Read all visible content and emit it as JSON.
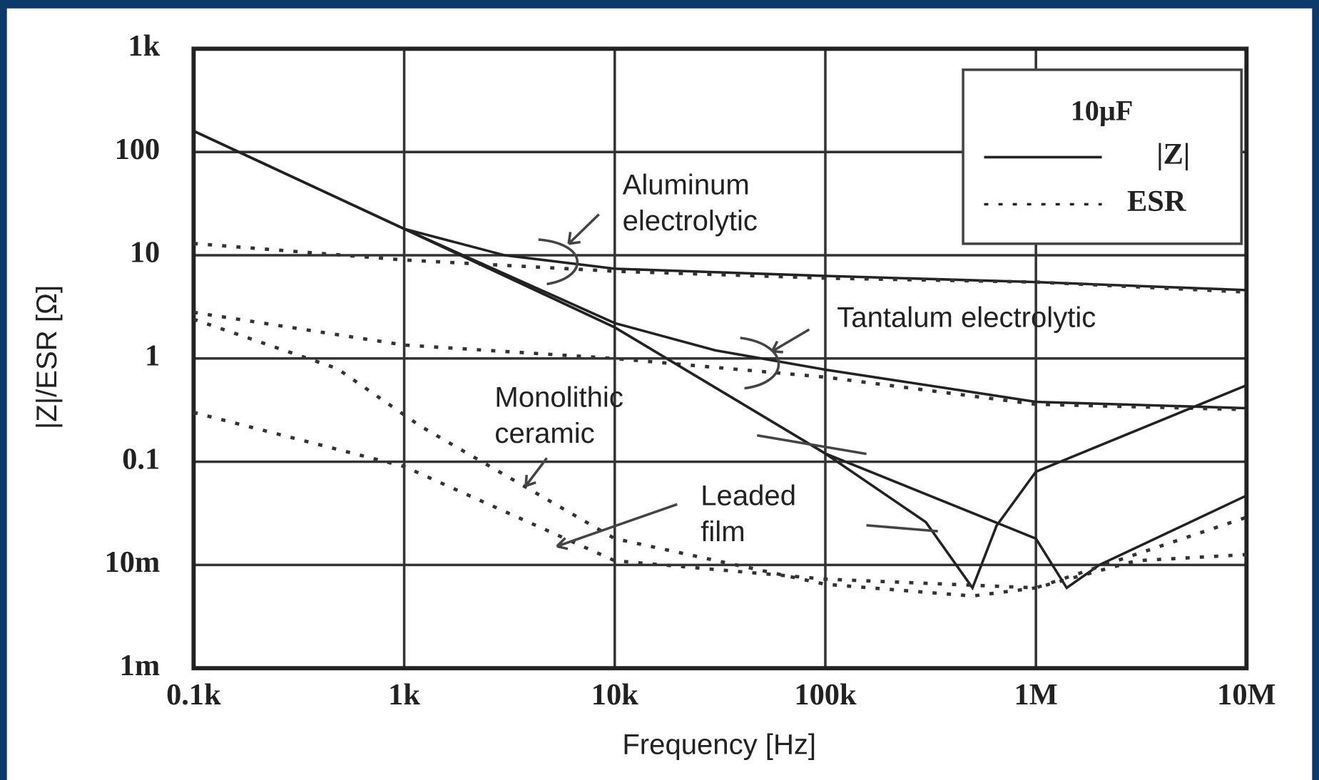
{
  "chart_data": {
    "type": "line",
    "log_x": true,
    "log_y": true,
    "grid": true,
    "x_label": "Frequency [Hz]",
    "y_label": "|Z|/ESR [Ω]",
    "xlim": [
      100,
      10000000
    ],
    "ylim": [
      0.001,
      1000
    ],
    "xticks": [
      {
        "value": 100,
        "label": "0.1k"
      },
      {
        "value": 1000,
        "label": "1k"
      },
      {
        "value": 10000,
        "label": "10k"
      },
      {
        "value": 100000,
        "label": "100k"
      },
      {
        "value": 1000000,
        "label": "1M"
      },
      {
        "value": 10000000,
        "label": "10M"
      }
    ],
    "yticks": [
      {
        "value": 0.001,
        "label": "1m"
      },
      {
        "value": 0.01,
        "label": "10m"
      },
      0.1,
      1,
      10,
      100,
      {
        "value": 1000,
        "label": "1k"
      }
    ],
    "legend": {
      "title": "10µF",
      "entries": [
        {
          "label": "|Z|",
          "style": "solid"
        },
        {
          "label": "ESR",
          "style": "dashed"
        }
      ]
    },
    "series": [
      {
        "style": "solid",
        "color": "#222",
        "x": [
          100,
          1000,
          3000,
          10000,
          100000,
          1000000,
          10000000
        ],
        "y": [
          160,
          18,
          10,
          7.4,
          6.3,
          5.5,
          4.6
        ]
      },
      {
        "style": "dashed",
        "color": "#333",
        "x": [
          100,
          1000,
          10000,
          100000,
          1000000,
          10000000
        ],
        "y": [
          13,
          9,
          7,
          6,
          5.5,
          4.4
        ]
      },
      {
        "style": "solid",
        "color": "#222",
        "x": [
          100,
          1000,
          10000,
          30000,
          100000,
          1000000,
          10000000
        ],
        "y": [
          160,
          18,
          2.2,
          1.2,
          0.78,
          0.38,
          0.33
        ]
      },
      {
        "style": "dashed",
        "color": "#333",
        "x": [
          100,
          1000,
          10000,
          100000,
          1000000,
          10000000
        ],
        "y": [
          2.8,
          1.35,
          1.0,
          0.66,
          0.36,
          0.32
        ]
      },
      {
        "style": "solid",
        "color": "#222",
        "x": [
          100,
          1000,
          10000,
          100000,
          300000,
          500000,
          650000,
          1000000,
          10000000
        ],
        "y": [
          160,
          18,
          2,
          0.12,
          0.026,
          0.006,
          0.024,
          0.08,
          0.55
        ]
      },
      {
        "style": "dashed",
        "color": "#333",
        "x": [
          100,
          480,
          1200,
          10000,
          100000,
          500000,
          1000000,
          3000000,
          10000000
        ],
        "y": [
          2.4,
          0.8,
          0.22,
          0.018,
          0.0065,
          0.005,
          0.006,
          0.011,
          0.0126
        ]
      },
      {
        "style": "solid",
        "color": "#222",
        "x": [
          100,
          1000,
          10000,
          100000,
          1000000,
          1400000,
          2000000,
          10000000
        ],
        "y": [
          160,
          18,
          2,
          0.12,
          0.018,
          0.006,
          0.01,
          0.047
        ]
      },
      {
        "style": "dashed",
        "color": "#333",
        "x": [
          100,
          1000,
          10000,
          100000,
          1000000,
          10000000
        ],
        "y": [
          0.3,
          0.09,
          0.011,
          0.0073,
          0.006,
          0.029
        ]
      }
    ],
    "annotations": [
      {
        "lines": [
          "Aluminum",
          "electrolytic"
        ]
      },
      {
        "lines": [
          "Tantalum electrolytic"
        ]
      },
      {
        "lines": [
          "Monolithic",
          "ceramic"
        ]
      },
      {
        "lines": [
          "Leaded",
          "film"
        ]
      }
    ]
  }
}
